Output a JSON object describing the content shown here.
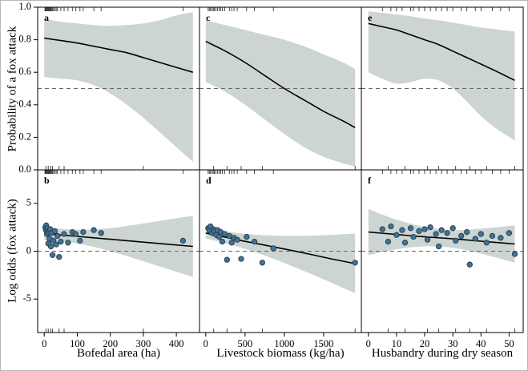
{
  "chart_data": {
    "type": "line",
    "description": "Six-panel regression effect plot: top row fitted probability of a fox attack with confidence bands and rug marks; bottom row log-odds partial residual scatter with fitted line and confidence bands.",
    "colors": {
      "band": "#ccd5d2",
      "fit_line": "#000000",
      "dashed": "#666666",
      "point_fill": "#46718e",
      "point_stroke": "#1e3e55",
      "rug": "#333333",
      "border": "#000000"
    },
    "columns": [
      {
        "xlabel": "Bofedal area (ha)",
        "xlim": [
          -20,
          470
        ],
        "xticks": [
          0,
          100,
          200,
          300,
          400
        ],
        "rug_top": [
          2,
          4,
          6,
          8,
          10,
          12,
          14,
          16,
          18,
          20,
          22,
          25,
          28,
          32,
          36,
          40,
          50,
          60,
          72,
          85,
          95,
          108,
          118,
          150,
          172,
          420
        ],
        "rug_bottom": [
          5,
          12,
          20,
          25,
          45,
          60,
          300
        ]
      },
      {
        "xlabel": "Livestock biomass (kg/ha)",
        "xlim": [
          -80,
          1980
        ],
        "xticks": [
          0,
          500,
          1000,
          1500
        ],
        "rug_top": [
          30,
          45,
          60,
          80,
          95,
          110,
          130,
          150,
          170,
          190,
          210,
          240,
          300,
          330,
          360,
          400,
          520,
          620,
          860
        ],
        "rug_bottom": [
          100,
          270,
          450,
          720,
          1900
        ]
      },
      {
        "xlabel": "Husbandry during dry season",
        "xlim": [
          -2.5,
          55
        ],
        "xticks": [
          0,
          10,
          20,
          30,
          40,
          50
        ],
        "rug_top": [
          5,
          8,
          10,
          12,
          15,
          16,
          18,
          20,
          22,
          24,
          26,
          28,
          30,
          33,
          35,
          38,
          40,
          44,
          47,
          50
        ],
        "rug_bottom": [
          7,
          13,
          21,
          25,
          31,
          36,
          42,
          52
        ]
      }
    ],
    "rows": [
      {
        "ylabel": "Probability of a fox attack",
        "ylim": [
          0,
          1
        ],
        "yticks": [
          0,
          0.2,
          0.4,
          0.6,
          0.8,
          1
        ],
        "ytick_labels": [
          "0.0",
          "0.2",
          "0.4",
          "0.6",
          "0.8",
          "1.0"
        ],
        "dashed_y": 0.5
      },
      {
        "ylabel": "Log odds (fox attack)",
        "ylim": [
          -8.5,
          8.5
        ],
        "yticks": [
          -5,
          0,
          5
        ],
        "ytick_labels": [
          "-5",
          "0",
          "5"
        ],
        "dashed_y": 0
      }
    ],
    "panels": [
      {
        "letter": "a",
        "row": 0,
        "col": 0,
        "x": [
          0,
          50,
          100,
          150,
          200,
          250,
          300,
          350,
          400,
          450
        ],
        "fit": [
          0.81,
          0.795,
          0.78,
          0.76,
          0.74,
          0.72,
          0.69,
          0.66,
          0.63,
          0.6
        ],
        "upper": [
          0.93,
          0.91,
          0.9,
          0.89,
          0.885,
          0.89,
          0.9,
          0.92,
          0.95,
          0.97
        ],
        "lower": [
          0.57,
          0.56,
          0.55,
          0.52,
          0.47,
          0.4,
          0.32,
          0.23,
          0.14,
          0.05
        ]
      },
      {
        "letter": "b",
        "row": 1,
        "col": 0,
        "x": [
          0,
          100,
          200,
          300,
          450
        ],
        "fit": [
          1.85,
          1.55,
          1.25,
          0.95,
          0.5
        ],
        "upper": [
          2.5,
          2.25,
          2.4,
          2.9,
          3.7
        ],
        "lower": [
          1.2,
          0.8,
          0.0,
          -1.05,
          -2.7
        ],
        "points": [
          [
            3,
            2.5
          ],
          [
            5,
            2.2
          ],
          [
            6,
            2.7
          ],
          [
            8,
            1.8
          ],
          [
            9,
            2.4
          ],
          [
            11,
            2.1
          ],
          [
            12,
            0.8
          ],
          [
            14,
            2.0
          ],
          [
            16,
            1.3
          ],
          [
            18,
            2.3
          ],
          [
            20,
            0.5
          ],
          [
            22,
            1.9
          ],
          [
            25,
            -0.4
          ],
          [
            28,
            1.1
          ],
          [
            32,
            2.1
          ],
          [
            36,
            0.7
          ],
          [
            40,
            1.6
          ],
          [
            45,
            -0.6
          ],
          [
            50,
            1.0
          ],
          [
            60,
            1.8
          ],
          [
            72,
            0.9
          ],
          [
            85,
            2.0
          ],
          [
            95,
            1.8
          ],
          [
            108,
            1.1
          ],
          [
            118,
            2.0
          ],
          [
            150,
            2.2
          ],
          [
            172,
            1.9
          ],
          [
            420,
            1.1
          ]
        ]
      },
      {
        "letter": "c",
        "row": 0,
        "col": 1,
        "x": [
          0,
          250,
          500,
          750,
          1000,
          1250,
          1500,
          1750,
          1900
        ],
        "fit": [
          0.79,
          0.73,
          0.66,
          0.58,
          0.5,
          0.43,
          0.36,
          0.3,
          0.26
        ],
        "upper": [
          0.92,
          0.89,
          0.86,
          0.83,
          0.8,
          0.76,
          0.71,
          0.66,
          0.62
        ],
        "lower": [
          0.54,
          0.48,
          0.4,
          0.31,
          0.22,
          0.14,
          0.08,
          0.04,
          0.02
        ]
      },
      {
        "letter": "d",
        "row": 1,
        "col": 1,
        "x": [
          0,
          400,
          800,
          1200,
          1600,
          1900
        ],
        "fit": [
          1.9,
          1.2,
          0.55,
          -0.1,
          -0.8,
          -1.3
        ],
        "upper": [
          2.5,
          1.9,
          1.65,
          1.6,
          1.7,
          1.85
        ],
        "lower": [
          1.35,
          0.5,
          -0.6,
          -1.9,
          -3.3,
          -4.4
        ],
        "points": [
          [
            30,
            2.4
          ],
          [
            45,
            2.2
          ],
          [
            60,
            2.6
          ],
          [
            80,
            1.9
          ],
          [
            95,
            2.3
          ],
          [
            110,
            2.1
          ],
          [
            130,
            1.7
          ],
          [
            150,
            2.2
          ],
          [
            170,
            1.5
          ],
          [
            190,
            2.0
          ],
          [
            210,
            1.0
          ],
          [
            240,
            1.8
          ],
          [
            270,
            -0.9
          ],
          [
            300,
            1.6
          ],
          [
            330,
            0.9
          ],
          [
            360,
            1.4
          ],
          [
            400,
            1.2
          ],
          [
            450,
            -0.8
          ],
          [
            520,
            1.5
          ],
          [
            620,
            1.0
          ],
          [
            720,
            -1.2
          ],
          [
            860,
            0.3
          ],
          [
            1900,
            -1.2
          ]
        ]
      },
      {
        "letter": "e",
        "row": 0,
        "col": 2,
        "x": [
          0,
          5,
          10,
          15,
          20,
          25,
          30,
          35,
          40,
          45,
          52
        ],
        "fit": [
          0.9,
          0.88,
          0.86,
          0.83,
          0.8,
          0.77,
          0.73,
          0.69,
          0.65,
          0.61,
          0.55
        ],
        "upper": [
          0.975,
          0.965,
          0.955,
          0.945,
          0.93,
          0.92,
          0.905,
          0.89,
          0.875,
          0.865,
          0.85
        ],
        "lower": [
          0.6,
          0.56,
          0.53,
          0.54,
          0.56,
          0.55,
          0.5,
          0.42,
          0.33,
          0.26,
          0.18
        ]
      },
      {
        "letter": "f",
        "row": 1,
        "col": 2,
        "x": [
          0,
          10,
          20,
          30,
          40,
          52
        ],
        "fit": [
          2.0,
          1.75,
          1.5,
          1.3,
          1.05,
          0.75
        ],
        "upper": [
          4.4,
          3.3,
          2.55,
          2.2,
          2.35,
          2.7
        ],
        "lower": [
          -0.4,
          0.2,
          0.5,
          0.35,
          -0.25,
          -1.2
        ],
        "points": [
          [
            5,
            2.3
          ],
          [
            7,
            1.0
          ],
          [
            8,
            2.6
          ],
          [
            10,
            1.7
          ],
          [
            12,
            2.2
          ],
          [
            13,
            0.9
          ],
          [
            15,
            2.4
          ],
          [
            16,
            1.5
          ],
          [
            18,
            2.1
          ],
          [
            20,
            2.3
          ],
          [
            21,
            1.2
          ],
          [
            22,
            2.5
          ],
          [
            24,
            1.8
          ],
          [
            25,
            0.5
          ],
          [
            26,
            2.2
          ],
          [
            28,
            1.9
          ],
          [
            30,
            2.4
          ],
          [
            31,
            1.1
          ],
          [
            33,
            1.6
          ],
          [
            35,
            2.0
          ],
          [
            36,
            -1.4
          ],
          [
            38,
            1.3
          ],
          [
            40,
            1.8
          ],
          [
            42,
            0.9
          ],
          [
            44,
            1.6
          ],
          [
            47,
            1.4
          ],
          [
            50,
            1.9
          ],
          [
            52,
            -0.3
          ]
        ]
      }
    ]
  }
}
